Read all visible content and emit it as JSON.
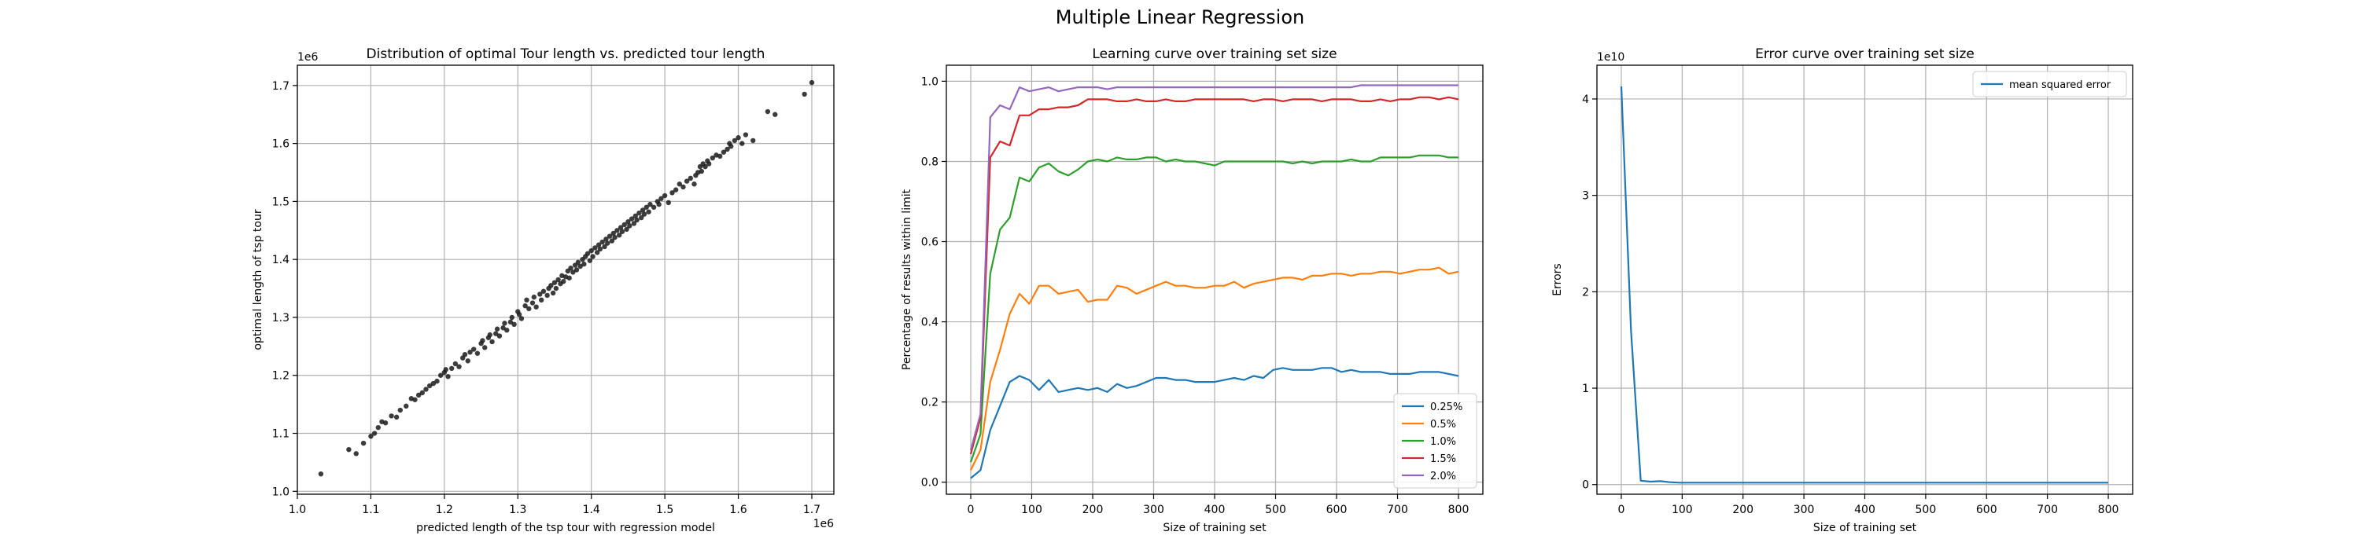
{
  "suptitle": "Multiple Linear Regression",
  "chart_data": [
    {
      "type": "scatter",
      "title": "Distribution of optimal Tour length vs. predicted tour length",
      "xlabel": "predicted length of the tsp tour with regression model",
      "ylabel": "optimal length of tsp tour",
      "x_multiplier": "1e6",
      "y_multiplier": "1e6",
      "xlim": [
        1.0,
        1.73
      ],
      "ylim": [
        0.995,
        1.735
      ],
      "xticks": [
        1.0,
        1.1,
        1.2,
        1.3,
        1.4,
        1.5,
        1.6,
        1.7
      ],
      "xtick_labels": [
        "1.0",
        "1.1",
        "1.2",
        "1.3",
        "1.4",
        "1.5",
        "1.6",
        "1.7"
      ],
      "yticks": [
        1.0,
        1.1,
        1.2,
        1.3,
        1.4,
        1.5,
        1.6,
        1.7
      ],
      "ytick_labels": [
        "1.0",
        "1.1",
        "1.2",
        "1.3",
        "1.4",
        "1.5",
        "1.6",
        "1.7"
      ],
      "grid": true,
      "marker_color": "#1a1a1a",
      "points": [
        [
          1.032,
          1.03
        ],
        [
          1.07,
          1.072
        ],
        [
          1.08,
          1.065
        ],
        [
          1.09,
          1.083
        ],
        [
          1.1,
          1.095
        ],
        [
          1.105,
          1.1
        ],
        [
          1.11,
          1.11
        ],
        [
          1.115,
          1.12
        ],
        [
          1.12,
          1.118
        ],
        [
          1.128,
          1.13
        ],
        [
          1.135,
          1.128
        ],
        [
          1.14,
          1.14
        ],
        [
          1.148,
          1.147
        ],
        [
          1.155,
          1.16
        ],
        [
          1.16,
          1.158
        ],
        [
          1.165,
          1.166
        ],
        [
          1.17,
          1.17
        ],
        [
          1.175,
          1.176
        ],
        [
          1.18,
          1.182
        ],
        [
          1.185,
          1.186
        ],
        [
          1.19,
          1.19
        ],
        [
          1.195,
          1.2
        ],
        [
          1.2,
          1.205
        ],
        [
          1.202,
          1.21
        ],
        [
          1.205,
          1.198
        ],
        [
          1.21,
          1.212
        ],
        [
          1.215,
          1.22
        ],
        [
          1.22,
          1.215
        ],
        [
          1.225,
          1.23
        ],
        [
          1.228,
          1.236
        ],
        [
          1.232,
          1.225
        ],
        [
          1.235,
          1.24
        ],
        [
          1.24,
          1.245
        ],
        [
          1.245,
          1.238
        ],
        [
          1.25,
          1.255
        ],
        [
          1.252,
          1.26
        ],
        [
          1.255,
          1.248
        ],
        [
          1.26,
          1.265
        ],
        [
          1.262,
          1.27
        ],
        [
          1.265,
          1.258
        ],
        [
          1.27,
          1.272
        ],
        [
          1.272,
          1.28
        ],
        [
          1.275,
          1.268
        ],
        [
          1.28,
          1.282
        ],
        [
          1.282,
          1.29
        ],
        [
          1.285,
          1.278
        ],
        [
          1.29,
          1.292
        ],
        [
          1.292,
          1.3
        ],
        [
          1.295,
          1.288
        ],
        [
          1.3,
          1.31
        ],
        [
          1.302,
          1.305
        ],
        [
          1.305,
          1.298
        ],
        [
          1.31,
          1.32
        ],
        [
          1.312,
          1.33
        ],
        [
          1.315,
          1.315
        ],
        [
          1.32,
          1.325
        ],
        [
          1.322,
          1.335
        ],
        [
          1.325,
          1.318
        ],
        [
          1.33,
          1.34
        ],
        [
          1.332,
          1.33
        ],
        [
          1.335,
          1.345
        ],
        [
          1.34,
          1.338
        ],
        [
          1.342,
          1.35
        ],
        [
          1.345,
          1.355
        ],
        [
          1.348,
          1.342
        ],
        [
          1.35,
          1.36
        ],
        [
          1.352,
          1.35
        ],
        [
          1.355,
          1.365
        ],
        [
          1.358,
          1.358
        ],
        [
          1.36,
          1.372
        ],
        [
          1.362,
          1.362
        ],
        [
          1.365,
          1.37
        ],
        [
          1.368,
          1.38
        ],
        [
          1.37,
          1.368
        ],
        [
          1.372,
          1.385
        ],
        [
          1.375,
          1.378
        ],
        [
          1.378,
          1.39
        ],
        [
          1.38,
          1.382
        ],
        [
          1.382,
          1.395
        ],
        [
          1.385,
          1.388
        ],
        [
          1.388,
          1.4
        ],
        [
          1.39,
          1.392
        ],
        [
          1.392,
          1.405
        ],
        [
          1.395,
          1.41
        ],
        [
          1.398,
          1.398
        ],
        [
          1.4,
          1.415
        ],
        [
          1.402,
          1.405
        ],
        [
          1.405,
          1.42
        ],
        [
          1.408,
          1.412
        ],
        [
          1.41,
          1.425
        ],
        [
          1.412,
          1.418
        ],
        [
          1.415,
          1.43
        ],
        [
          1.418,
          1.422
        ],
        [
          1.42,
          1.435
        ],
        [
          1.422,
          1.428
        ],
        [
          1.425,
          1.44
        ],
        [
          1.428,
          1.432
        ],
        [
          1.43,
          1.445
        ],
        [
          1.432,
          1.438
        ],
        [
          1.435,
          1.45
        ],
        [
          1.438,
          1.442
        ],
        [
          1.44,
          1.455
        ],
        [
          1.442,
          1.448
        ],
        [
          1.445,
          1.46
        ],
        [
          1.448,
          1.452
        ],
        [
          1.45,
          1.465
        ],
        [
          1.452,
          1.458
        ],
        [
          1.455,
          1.47
        ],
        [
          1.458,
          1.462
        ],
        [
          1.46,
          1.475
        ],
        [
          1.462,
          1.468
        ],
        [
          1.465,
          1.48
        ],
        [
          1.468,
          1.472
        ],
        [
          1.47,
          1.485
        ],
        [
          1.472,
          1.478
        ],
        [
          1.475,
          1.49
        ],
        [
          1.478,
          1.482
        ],
        [
          1.48,
          1.495
        ],
        [
          1.485,
          1.49
        ],
        [
          1.49,
          1.5
        ],
        [
          1.492,
          1.495
        ],
        [
          1.495,
          1.505
        ],
        [
          1.5,
          1.51
        ],
        [
          1.505,
          1.498
        ],
        [
          1.51,
          1.515
        ],
        [
          1.515,
          1.52
        ],
        [
          1.52,
          1.53
        ],
        [
          1.525,
          1.525
        ],
        [
          1.53,
          1.535
        ],
        [
          1.535,
          1.54
        ],
        [
          1.54,
          1.53
        ],
        [
          1.542,
          1.545
        ],
        [
          1.545,
          1.55
        ],
        [
          1.548,
          1.56
        ],
        [
          1.55,
          1.552
        ],
        [
          1.552,
          1.565
        ],
        [
          1.555,
          1.56
        ],
        [
          1.558,
          1.57
        ],
        [
          1.56,
          1.565
        ],
        [
          1.565,
          1.575
        ],
        [
          1.57,
          1.58
        ],
        [
          1.575,
          1.578
        ],
        [
          1.58,
          1.585
        ],
        [
          1.585,
          1.59
        ],
        [
          1.588,
          1.6
        ],
        [
          1.59,
          1.595
        ],
        [
          1.595,
          1.605
        ],
        [
          1.6,
          1.61
        ],
        [
          1.605,
          1.6
        ],
        [
          1.61,
          1.615
        ],
        [
          1.62,
          1.605
        ],
        [
          1.64,
          1.655
        ],
        [
          1.65,
          1.65
        ],
        [
          1.69,
          1.685
        ],
        [
          1.7,
          1.705
        ]
      ]
    },
    {
      "type": "line",
      "title": "Learning curve over training set size",
      "xlabel": "Size of training set",
      "ylabel": "Percentage of results within limit",
      "xlim": [
        -40,
        840
      ],
      "ylim": [
        -0.03,
        1.04
      ],
      "xticks": [
        0,
        100,
        200,
        300,
        400,
        500,
        600,
        700,
        800
      ],
      "xtick_labels": [
        "0",
        "100",
        "200",
        "300",
        "400",
        "500",
        "600",
        "700",
        "800"
      ],
      "yticks": [
        0.0,
        0.2,
        0.4,
        0.6,
        0.8,
        1.0
      ],
      "ytick_labels": [
        "0.0",
        "0.2",
        "0.4",
        "0.6",
        "0.8",
        "1.0"
      ],
      "grid": true,
      "legend_position": "lower-right",
      "x": [
        0,
        16,
        32,
        48,
        64,
        80,
        96,
        112,
        128,
        144,
        160,
        176,
        192,
        208,
        224,
        240,
        256,
        272,
        288,
        304,
        320,
        336,
        352,
        368,
        384,
        400,
        416,
        432,
        448,
        464,
        480,
        496,
        512,
        528,
        544,
        560,
        576,
        592,
        608,
        624,
        640,
        656,
        672,
        688,
        704,
        720,
        736,
        752,
        768,
        784,
        800
      ],
      "series": [
        {
          "name": "0.25%",
          "color": "#1f77b4",
          "values": [
            0.01,
            0.03,
            0.13,
            0.19,
            0.25,
            0.265,
            0.255,
            0.23,
            0.255,
            0.225,
            0.23,
            0.235,
            0.23,
            0.235,
            0.225,
            0.245,
            0.235,
            0.24,
            0.25,
            0.26,
            0.26,
            0.255,
            0.255,
            0.25,
            0.25,
            0.25,
            0.255,
            0.26,
            0.255,
            0.265,
            0.26,
            0.28,
            0.285,
            0.28,
            0.28,
            0.28,
            0.285,
            0.285,
            0.275,
            0.28,
            0.275,
            0.275,
            0.275,
            0.27,
            0.27,
            0.27,
            0.275,
            0.275,
            0.275,
            0.27,
            0.265
          ]
        },
        {
          "name": "0.5%",
          "color": "#ff7f0e",
          "values": [
            0.03,
            0.08,
            0.25,
            0.33,
            0.42,
            0.47,
            0.445,
            0.49,
            0.49,
            0.47,
            0.475,
            0.48,
            0.45,
            0.455,
            0.455,
            0.49,
            0.485,
            0.47,
            0.48,
            0.49,
            0.5,
            0.49,
            0.49,
            0.485,
            0.485,
            0.49,
            0.49,
            0.5,
            0.485,
            0.495,
            0.5,
            0.505,
            0.51,
            0.51,
            0.505,
            0.515,
            0.515,
            0.52,
            0.52,
            0.515,
            0.52,
            0.52,
            0.525,
            0.525,
            0.52,
            0.525,
            0.53,
            0.53,
            0.535,
            0.52,
            0.525
          ]
        },
        {
          "name": "1.0%",
          "color": "#2ca02c",
          "values": [
            0.05,
            0.12,
            0.52,
            0.63,
            0.66,
            0.76,
            0.75,
            0.785,
            0.795,
            0.775,
            0.765,
            0.78,
            0.8,
            0.805,
            0.8,
            0.81,
            0.805,
            0.805,
            0.81,
            0.81,
            0.8,
            0.805,
            0.8,
            0.8,
            0.795,
            0.79,
            0.8,
            0.8,
            0.8,
            0.8,
            0.8,
            0.8,
            0.8,
            0.795,
            0.8,
            0.795,
            0.8,
            0.8,
            0.8,
            0.805,
            0.8,
            0.8,
            0.81,
            0.81,
            0.81,
            0.81,
            0.815,
            0.815,
            0.815,
            0.81,
            0.81
          ]
        },
        {
          "name": "1.5%",
          "color": "#d62728",
          "values": [
            0.07,
            0.16,
            0.81,
            0.85,
            0.84,
            0.915,
            0.915,
            0.93,
            0.93,
            0.935,
            0.935,
            0.94,
            0.955,
            0.955,
            0.955,
            0.95,
            0.95,
            0.955,
            0.95,
            0.95,
            0.955,
            0.95,
            0.95,
            0.955,
            0.955,
            0.955,
            0.955,
            0.955,
            0.955,
            0.95,
            0.955,
            0.955,
            0.95,
            0.955,
            0.955,
            0.955,
            0.95,
            0.955,
            0.955,
            0.955,
            0.95,
            0.95,
            0.955,
            0.95,
            0.955,
            0.955,
            0.96,
            0.96,
            0.955,
            0.96,
            0.955
          ]
        },
        {
          "name": "2.0%",
          "color": "#9467bd",
          "values": [
            0.08,
            0.17,
            0.91,
            0.94,
            0.93,
            0.985,
            0.975,
            0.98,
            0.985,
            0.975,
            0.98,
            0.985,
            0.985,
            0.985,
            0.98,
            0.985,
            0.985,
            0.985,
            0.985,
            0.985,
            0.985,
            0.985,
            0.985,
            0.985,
            0.985,
            0.985,
            0.985,
            0.985,
            0.985,
            0.985,
            0.985,
            0.985,
            0.985,
            0.985,
            0.985,
            0.985,
            0.985,
            0.985,
            0.985,
            0.985,
            0.99,
            0.99,
            0.99,
            0.99,
            0.99,
            0.99,
            0.99,
            0.99,
            0.99,
            0.99,
            0.99
          ]
        }
      ]
    },
    {
      "type": "line",
      "title": "Error curve over training set size",
      "xlabel": "Size of training set",
      "ylabel": "Errors",
      "y_multiplier": "1e10",
      "xlim": [
        -40,
        840
      ],
      "ylim": [
        -0.1,
        4.35
      ],
      "xticks": [
        0,
        100,
        200,
        300,
        400,
        500,
        600,
        700,
        800
      ],
      "xtick_labels": [
        "0",
        "100",
        "200",
        "300",
        "400",
        "500",
        "600",
        "700",
        "800"
      ],
      "yticks": [
        0,
        1,
        2,
        3,
        4
      ],
      "ytick_labels": [
        "0",
        "1",
        "2",
        "3",
        "4"
      ],
      "grid": true,
      "legend_position": "top-right",
      "x": [
        0,
        16,
        32,
        48,
        64,
        80,
        96,
        112,
        128,
        144,
        160,
        176,
        192,
        208,
        224,
        240,
        256,
        272,
        288,
        304,
        320,
        336,
        352,
        368,
        384,
        400,
        416,
        432,
        448,
        464,
        480,
        496,
        512,
        528,
        544,
        560,
        576,
        592,
        608,
        624,
        640,
        656,
        672,
        688,
        704,
        720,
        736,
        752,
        768,
        784,
        800
      ],
      "series": [
        {
          "name": "mean squared error",
          "color": "#1f77b4",
          "values": [
            4.13,
            1.6,
            0.04,
            0.03,
            0.035,
            0.025,
            0.02,
            0.02,
            0.02,
            0.02,
            0.02,
            0.02,
            0.02,
            0.02,
            0.02,
            0.02,
            0.02,
            0.02,
            0.02,
            0.02,
            0.02,
            0.02,
            0.02,
            0.02,
            0.02,
            0.02,
            0.02,
            0.02,
            0.02,
            0.02,
            0.02,
            0.02,
            0.02,
            0.02,
            0.02,
            0.02,
            0.02,
            0.02,
            0.02,
            0.02,
            0.02,
            0.02,
            0.02,
            0.02,
            0.02,
            0.02,
            0.02,
            0.02,
            0.02,
            0.02,
            0.02
          ]
        }
      ]
    }
  ]
}
